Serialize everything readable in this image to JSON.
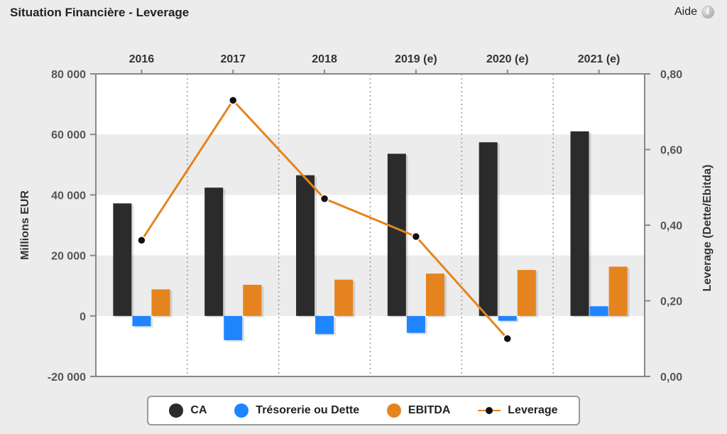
{
  "header": {
    "title": "Situation Financière - Leverage",
    "help_label": "Aide",
    "help_icon": "info-icon"
  },
  "chart_data": {
    "type": "bar",
    "categories": [
      "2016",
      "2017",
      "2018",
      "2019 (e)",
      "2020 (e)",
      "2021 (e)"
    ],
    "ylabel": "Millions EUR",
    "y2label": "Leverage (Dette/Ebitda)",
    "ylim": [
      -20000,
      80000
    ],
    "y2lim": [
      0,
      0.8
    ],
    "yticks": [
      "-20 000",
      "0",
      "20 000",
      "40 000",
      "60 000",
      "80 000"
    ],
    "y2ticks": [
      "0,00",
      "0,20",
      "0,40",
      "0,60",
      "0,80"
    ],
    "series": [
      {
        "name": "CA",
        "type": "bar",
        "color": "#2b2b2b",
        "values": [
          37200,
          42400,
          46500,
          53600,
          57400,
          61000
        ]
      },
      {
        "name": "Trésorerie ou Dette",
        "type": "bar",
        "color": "#1f85ff",
        "values": [
          -3400,
          -8000,
          -6000,
          -5600,
          -1600,
          3200
        ]
      },
      {
        "name": "EBITDA",
        "type": "bar",
        "color": "#e5841f",
        "values": [
          8800,
          10300,
          12000,
          14000,
          15200,
          16300
        ]
      },
      {
        "name": "Leverage",
        "type": "line",
        "axis": "right",
        "color": "#e5841f",
        "marker_color": "#111111",
        "values": [
          0.36,
          0.73,
          0.47,
          0.37,
          0.1,
          null
        ]
      }
    ],
    "legend_position": "bottom",
    "grid": true
  }
}
